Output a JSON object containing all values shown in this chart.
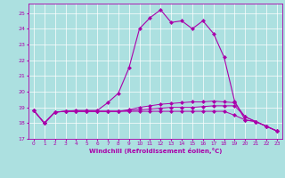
{
  "background_color": "#ace0e0",
  "grid_color": "#ffffff",
  "line_color": "#aa00aa",
  "line_color2": "#880088",
  "xlabel": "Windchill (Refroidissement éolien,°C)",
  "xlim": [
    -0.5,
    23.5
  ],
  "ylim": [
    17.0,
    25.6
  ],
  "yticks": [
    17,
    18,
    19,
    20,
    21,
    22,
    23,
    24,
    25
  ],
  "xticks": [
    0,
    1,
    2,
    3,
    4,
    5,
    6,
    7,
    8,
    9,
    10,
    11,
    12,
    13,
    14,
    15,
    16,
    17,
    18,
    19,
    20,
    21,
    22,
    23
  ],
  "line1_x": [
    0,
    1,
    2,
    3,
    4,
    5,
    6,
    7,
    8,
    9,
    10,
    11,
    12,
    13,
    14,
    15,
    16,
    17,
    18,
    19,
    20,
    21,
    22,
    23
  ],
  "line1_y": [
    18.8,
    18.0,
    18.7,
    18.75,
    18.8,
    18.8,
    18.8,
    19.3,
    19.9,
    21.5,
    24.0,
    24.7,
    25.2,
    24.4,
    24.5,
    24.0,
    24.5,
    23.7,
    22.2,
    19.4,
    18.2,
    18.1,
    17.8,
    17.5
  ],
  "line2_x": [
    0,
    1,
    2,
    3,
    4,
    5,
    6,
    7,
    8,
    9,
    10,
    11,
    12,
    13,
    14,
    15,
    16,
    17,
    18,
    19,
    20,
    21,
    22,
    23
  ],
  "line2_y": [
    18.8,
    18.0,
    18.7,
    18.75,
    18.75,
    18.75,
    18.75,
    18.75,
    18.75,
    18.75,
    18.75,
    18.75,
    18.75,
    18.75,
    18.75,
    18.75,
    18.75,
    18.75,
    18.75,
    18.5,
    18.2,
    18.1,
    17.8,
    17.5
  ],
  "line3_x": [
    0,
    1,
    2,
    3,
    4,
    5,
    6,
    7,
    8,
    9,
    10,
    11,
    12,
    13,
    14,
    15,
    16,
    17,
    18,
    19,
    20,
    21,
    22,
    23
  ],
  "line3_y": [
    18.8,
    18.0,
    18.7,
    18.75,
    18.75,
    18.75,
    18.75,
    18.75,
    18.75,
    18.8,
    18.85,
    18.9,
    18.95,
    19.0,
    19.0,
    19.0,
    19.05,
    19.1,
    19.1,
    19.1,
    18.4,
    18.1,
    17.8,
    17.5
  ],
  "line4_x": [
    0,
    1,
    2,
    3,
    4,
    5,
    6,
    7,
    8,
    9,
    10,
    11,
    12,
    13,
    14,
    15,
    16,
    17,
    18,
    19,
    20,
    21,
    22,
    23
  ],
  "line4_y": [
    18.8,
    18.0,
    18.7,
    18.75,
    18.75,
    18.75,
    18.75,
    18.75,
    18.75,
    18.85,
    19.0,
    19.1,
    19.2,
    19.25,
    19.3,
    19.35,
    19.35,
    19.4,
    19.35,
    19.3,
    18.4,
    18.1,
    17.8,
    17.5
  ]
}
